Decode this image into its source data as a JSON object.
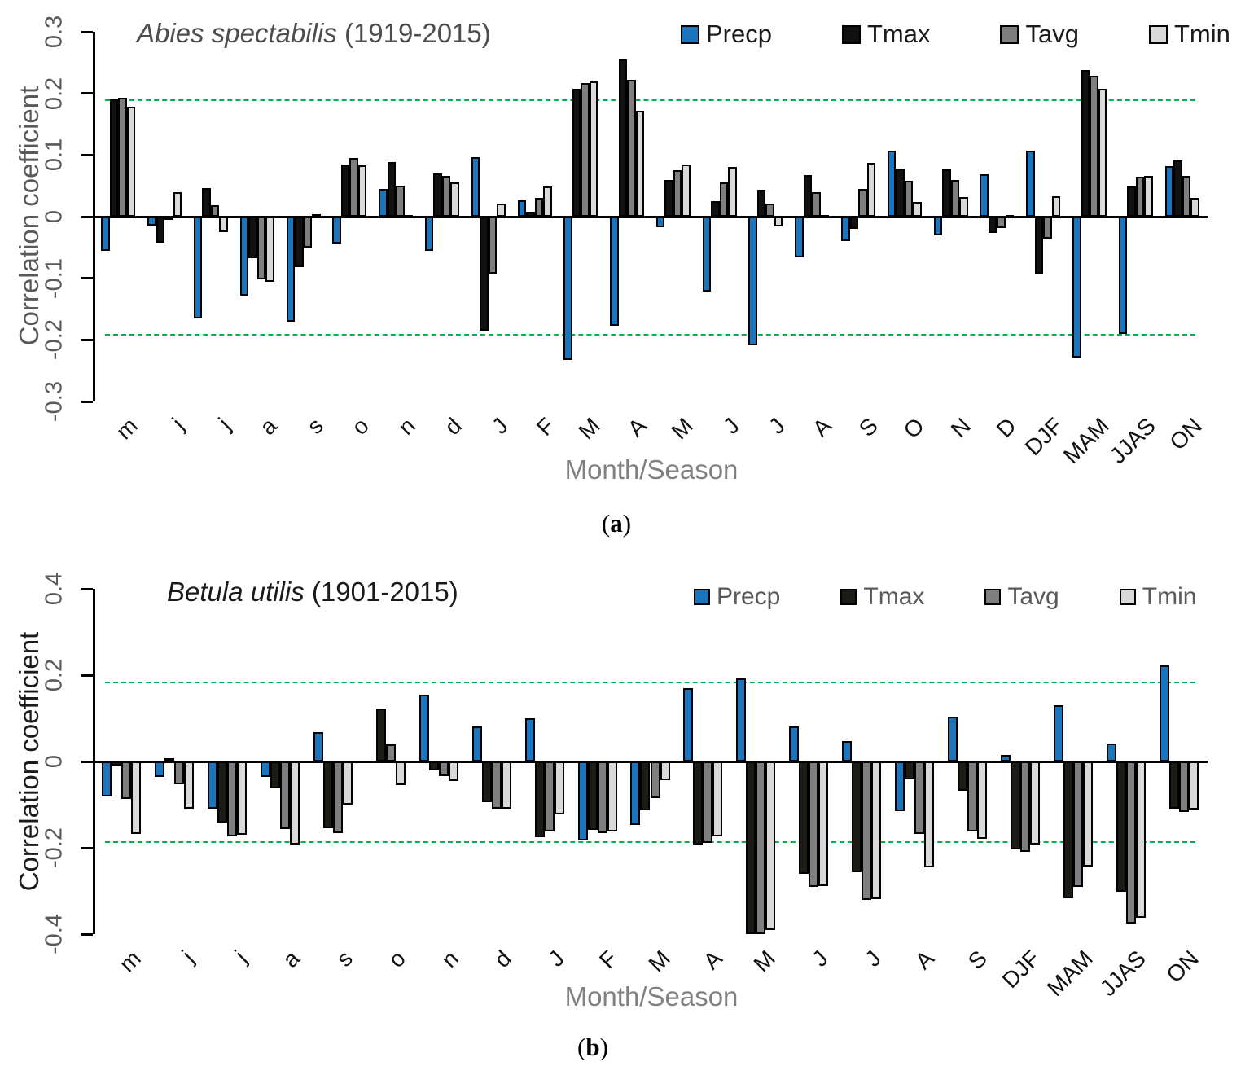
{
  "figure": {
    "background": "#ffffff",
    "significance_line_color": "#00b050",
    "axis_color": "#000000",
    "tick_text_color": "#595959"
  },
  "chart_data": [
    {
      "type": "bar",
      "panel_label": "(a)",
      "title_species": "Abies spectabilis",
      "title_years": " (1919-2015)",
      "ylabel": "Correlation coefficient",
      "xlabel": "Month/Season",
      "ylim": [
        -0.3,
        0.3
      ],
      "yticks": [
        0.3,
        0.2,
        0.1,
        0,
        -0.1,
        -0.2,
        -0.3
      ],
      "significance_lines": [
        0.19,
        -0.19
      ],
      "grid": false,
      "legend_position": "top-right",
      "categories": [
        "m",
        "j",
        "j",
        "a",
        "s",
        "o",
        "n",
        "d",
        "J",
        "F",
        "M",
        "A",
        "M",
        "J",
        "J",
        "A",
        "S",
        "O",
        "N",
        "D",
        "DJF",
        "MAM",
        "JJAS",
        "ON"
      ],
      "series": [
        {
          "name": "Precp",
          "color": "#1b75bc",
          "values": [
            -0.055,
            -0.015,
            -0.165,
            -0.128,
            -0.17,
            -0.043,
            0.045,
            -0.056,
            0.096,
            0.026,
            -0.233,
            -0.177,
            -0.017,
            -0.122,
            -0.209,
            -0.066,
            -0.04,
            0.107,
            -0.031,
            0.069,
            0.107,
            -0.228,
            -0.19,
            0.082
          ]
        },
        {
          "name": "Tmax",
          "color": "#111111",
          "values": [
            0.19,
            -0.042,
            0.046,
            -0.067,
            -0.082,
            0.085,
            0.088,
            0.07,
            -0.185,
            0.008,
            0.207,
            0.255,
            0.059,
            0.025,
            0.044,
            0.068,
            -0.02,
            0.078,
            0.077,
            -0.026,
            -0.093,
            0.238,
            0.049,
            0.091
          ]
        },
        {
          "name": "Tavg",
          "color": "#7f7f7f",
          "values": [
            0.193,
            -0.005,
            0.018,
            -0.102,
            -0.05,
            0.095,
            0.05,
            0.066,
            -0.093,
            0.03,
            0.217,
            0.222,
            0.075,
            0.055,
            0.021,
            0.04,
            0.045,
            0.058,
            0.06,
            -0.018,
            -0.036,
            0.229,
            0.065,
            0.066
          ]
        },
        {
          "name": "Tmin",
          "color": "#d9d9d9",
          "values": [
            0.178,
            0.04,
            -0.025,
            -0.106,
            0.004,
            0.083,
            0.002,
            0.055,
            0.021,
            0.049,
            0.219,
            0.172,
            0.084,
            0.081,
            -0.016,
            0.002,
            0.087,
            0.024,
            0.032,
            0.003,
            0.033,
            0.207,
            0.066,
            0.031
          ]
        }
      ]
    },
    {
      "type": "bar",
      "panel_label": "(b)",
      "title_species": "Betula utilis",
      "title_years": " (1901-2015)",
      "ylabel": "Correlation coefficient",
      "xlabel": "Month/Season",
      "ylim": [
        -0.4,
        0.4
      ],
      "yticks": [
        0.4,
        0.2,
        0,
        -0.2,
        -0.4
      ],
      "significance_lines": [
        0.185,
        -0.185
      ],
      "grid": false,
      "legend_position": "top-right",
      "categories": [
        "m",
        "j",
        "j",
        "a",
        "s",
        "o",
        "n",
        "d",
        "J",
        "F",
        "M",
        "A",
        "M",
        "J",
        "J",
        "A",
        "S",
        "DJF",
        "MAM",
        "JJAS",
        "ON"
      ],
      "series": [
        {
          "name": "Precp",
          "color": "#1b75bc",
          "values": [
            -0.082,
            -0.035,
            -0.11,
            -0.035,
            0.067,
            0,
            0.155,
            0.082,
            0.1,
            -0.183,
            -0.147,
            0.169,
            0.193,
            0.082,
            0.047,
            -0.115,
            0.104,
            0.016,
            0.13,
            0.041,
            0.222
          ]
        },
        {
          "name": "Tmax",
          "color": "#1c1b15",
          "values": [
            -0.01,
            0.007,
            -0.142,
            -0.062,
            -0.154,
            0.122,
            -0.021,
            -0.095,
            -0.176,
            -0.158,
            -0.113,
            -0.192,
            -0.4,
            -0.26,
            -0.257,
            -0.041,
            -0.068,
            -0.204,
            -0.317,
            -0.302,
            -0.109
          ]
        },
        {
          "name": "Tavg",
          "color": "#7f7f7f",
          "values": [
            -0.087,
            -0.053,
            -0.173,
            -0.156,
            -0.166,
            0.04,
            -0.034,
            -0.11,
            -0.163,
            -0.166,
            -0.084,
            -0.188,
            -0.41,
            -0.29,
            -0.321,
            -0.167,
            -0.163,
            -0.209,
            -0.29,
            -0.376,
            -0.117
          ]
        },
        {
          "name": "Tmin",
          "color": "#d9d9d9",
          "values": [
            -0.168,
            -0.11,
            -0.17,
            -0.192,
            -0.1,
            -0.054,
            -0.046,
            -0.109,
            -0.122,
            -0.163,
            -0.044,
            -0.173,
            -0.39,
            -0.288,
            -0.318,
            -0.246,
            -0.18,
            -0.193,
            -0.243,
            -0.362,
            -0.112
          ]
        }
      ]
    }
  ]
}
